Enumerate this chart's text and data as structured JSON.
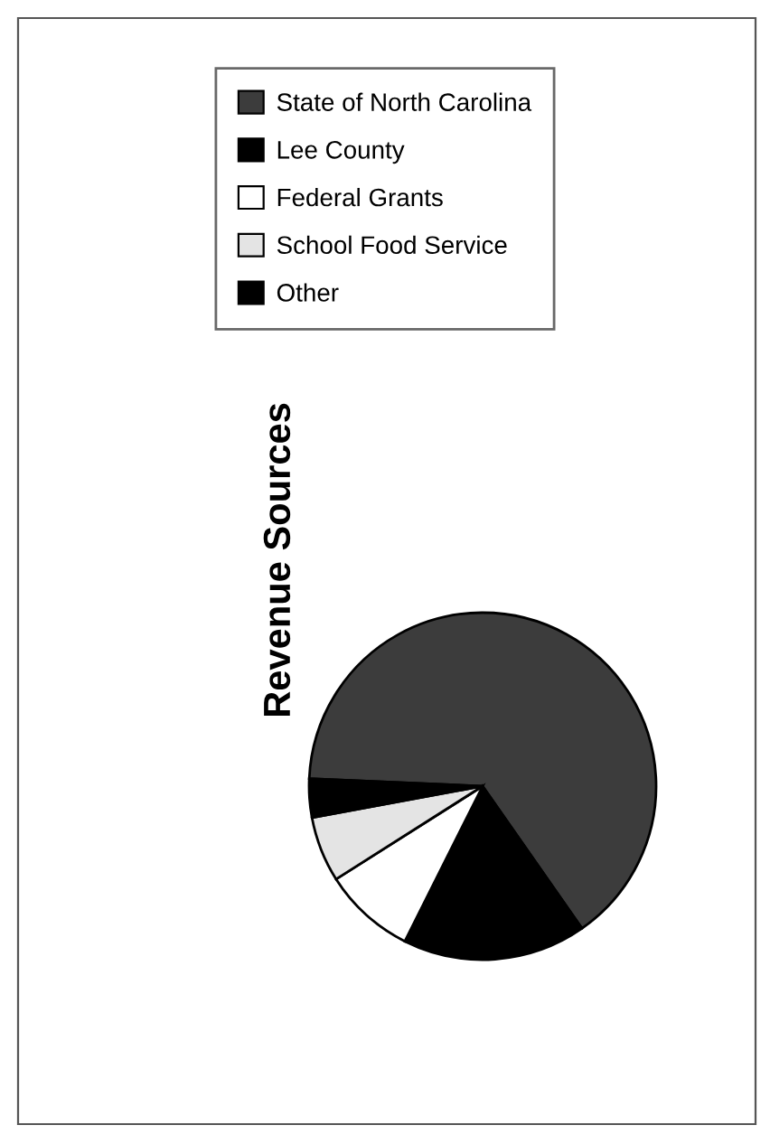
{
  "chart_data": {
    "type": "pie",
    "title": "Revenue Sources",
    "categories": [
      "State of North Carolina",
      "Lee County",
      "Federal Grants",
      "School Food Service",
      "Other"
    ],
    "values": [
      64.6,
      17.1,
      8.6,
      6.1,
      3.6
    ],
    "colors": [
      "#3c3c3c",
      "#000000",
      "#ffffff",
      "#e4e4e4",
      "#000000"
    ],
    "legend": "top"
  }
}
